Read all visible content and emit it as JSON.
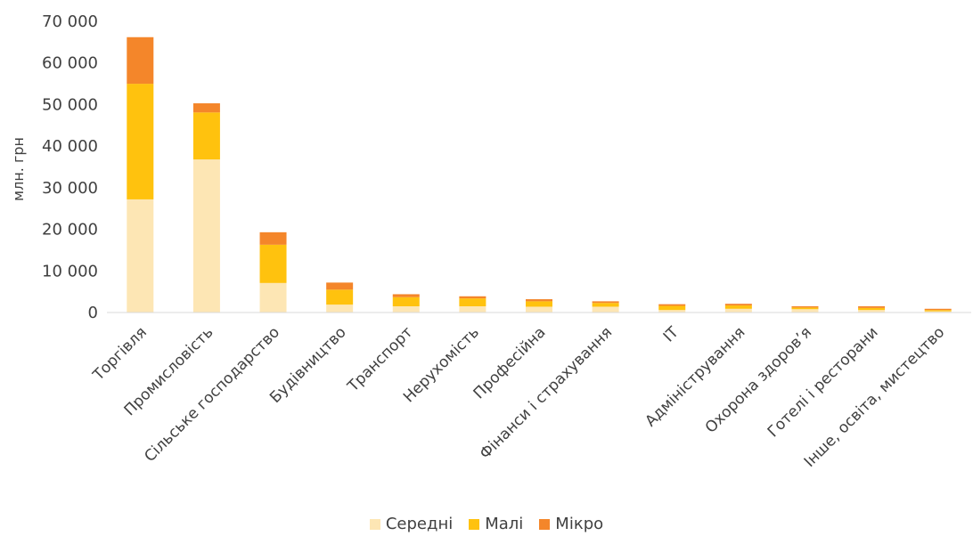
{
  "chart_data": {
    "type": "bar",
    "stacked": true,
    "ylabel": "млн. грн",
    "ylim": [
      0,
      70000
    ],
    "yticks": [
      "0",
      "10 000",
      "20 000",
      "30 000",
      "40 000",
      "50 000",
      "60 000",
      "70 000"
    ],
    "categories": [
      "Торгівля",
      "Промисловість",
      "Сільське господарство",
      "Будівництво",
      "Транспорт",
      "Нерухомість",
      "Професійна",
      "Фінанси і страхування",
      "IT",
      "Адміністрування",
      "Охорона здоров’я",
      "Готелі і ресторани",
      "Інше, освіта, мистецтво"
    ],
    "series": [
      {
        "name": "Середні",
        "color": "#FDE6B4",
        "values": [
          27200,
          36800,
          7100,
          1900,
          1500,
          1500,
          1400,
          1400,
          600,
          900,
          800,
          600,
          300
        ]
      },
      {
        "name": "Малі",
        "color": "#FFC20E",
        "values": [
          27800,
          11300,
          9200,
          3600,
          2200,
          1900,
          1300,
          900,
          1000,
          800,
          400,
          500,
          300
        ]
      },
      {
        "name": "Мікро",
        "color": "#F4862A",
        "values": [
          11200,
          2200,
          3000,
          1700,
          700,
          500,
          500,
          400,
          400,
          400,
          300,
          400,
          300
        ]
      }
    ],
    "grid": false,
    "legend_position": "bottom"
  }
}
